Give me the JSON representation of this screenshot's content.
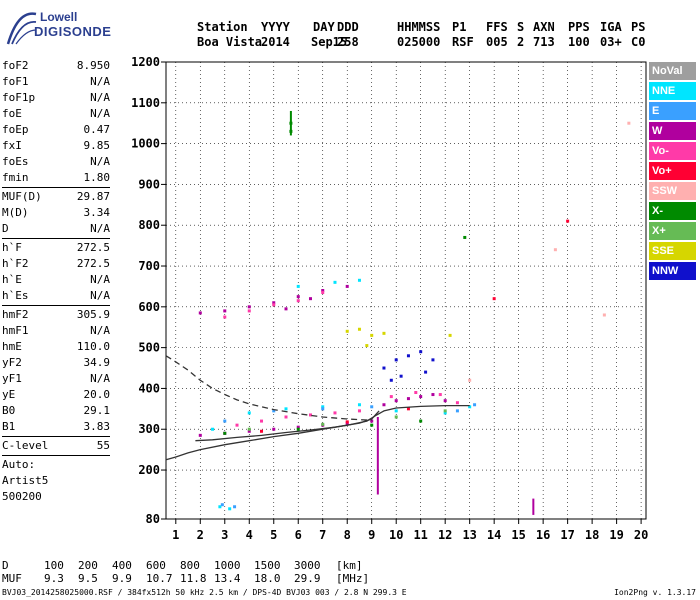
{
  "logo": {
    "line1": "Lowell",
    "line2": "DIGISONDE"
  },
  "header": {
    "labels": [
      "Station",
      "YYYY",
      "DAY",
      "DDD",
      "HHMMSS",
      "P1",
      "FFS",
      "S",
      "AXN",
      "PPS",
      "IGA",
      "PS"
    ],
    "values": [
      "Boa Vista",
      "2014",
      "Sep15",
      "258",
      "025000",
      "RSF",
      "005",
      "2",
      "713",
      "100",
      "03+",
      "C0"
    ]
  },
  "params": {
    "group1": [
      {
        "name": "foF2",
        "value": "8.950"
      },
      {
        "name": "foF1",
        "value": "N/A"
      },
      {
        "name": "foF1p",
        "value": "N/A"
      },
      {
        "name": "foE",
        "value": "N/A"
      },
      {
        "name": "foEp",
        "value": "0.47"
      },
      {
        "name": "fxI",
        "value": "9.85"
      },
      {
        "name": "foEs",
        "value": "N/A"
      },
      {
        "name": "fmin",
        "value": "1.80"
      }
    ],
    "group2": [
      {
        "name": "MUF(D)",
        "value": "29.87"
      },
      {
        "name": "M(D)",
        "value": "3.34"
      },
      {
        "name": "D",
        "value": "N/A"
      }
    ],
    "group3": [
      {
        "name": "h`F",
        "value": "272.5"
      },
      {
        "name": "h`F2",
        "value": "272.5"
      },
      {
        "name": "h`E",
        "value": "N/A"
      },
      {
        "name": "h`Es",
        "value": "N/A"
      }
    ],
    "group4": [
      {
        "name": "hmF2",
        "value": "305.9"
      },
      {
        "name": "hmF1",
        "value": "N/A"
      },
      {
        "name": "hmE",
        "value": "110.0"
      },
      {
        "name": "yF2",
        "value": "34.9"
      },
      {
        "name": "yF1",
        "value": "N/A"
      },
      {
        "name": "yE",
        "value": "20.0"
      },
      {
        "name": "B0",
        "value": "29.1"
      },
      {
        "name": "B1",
        "value": "3.83"
      }
    ],
    "group5": [
      {
        "name": "C-level",
        "value": "55"
      }
    ],
    "auto": [
      "Auto:",
      "Artist5",
      "500200"
    ]
  },
  "legend": [
    {
      "label": "NoVal",
      "color": "#9e9e9e"
    },
    {
      "label": "NNE",
      "color": "#00e5ff"
    },
    {
      "label": "E",
      "color": "#3aa0ff"
    },
    {
      "label": "W",
      "color": "#b0009e"
    },
    {
      "label": "Vo-",
      "color": "#ff3aa8"
    },
    {
      "label": "Vo+",
      "color": "#ff0033"
    },
    {
      "label": "SSW",
      "color": "#ffb0b0"
    },
    {
      "label": "X-",
      "color": "#008a00"
    },
    {
      "label": "X+",
      "color": "#66bb55"
    },
    {
      "label": "SSE",
      "color": "#d6d600"
    },
    {
      "label": "NNW",
      "color": "#1010cc"
    }
  ],
  "muf_table": {
    "d_label": "D",
    "d_values": [
      "100",
      "200",
      "400",
      "600",
      "800",
      "1000",
      "1500",
      "3000"
    ],
    "d_unit": "[km]",
    "muf_label": "MUF",
    "muf_values": [
      "9.3",
      "9.5",
      "9.9",
      "10.7",
      "11.8",
      "13.4",
      "18.0",
      "29.9"
    ],
    "muf_unit": "[MHz]"
  },
  "footer": {
    "left": "BVJ03_2014258025000.RSF / 384fx512h 50 kHz 2.5 km / DPS-4D BVJ03 003 / 2.8 N 299.3 E",
    "right": "Ion2Png v. 1.3.17"
  },
  "chart_data": {
    "type": "scatter",
    "x_ticks": [
      1,
      2,
      3,
      4,
      5,
      6,
      7,
      8,
      9,
      10,
      11,
      12,
      13,
      14,
      15,
      16,
      17,
      18,
      19,
      20
    ],
    "y_ticks": [
      80,
      200,
      300,
      400,
      500,
      600,
      700,
      800,
      900,
      1000,
      1100,
      1200
    ],
    "xlim": [
      0.6,
      20.2
    ],
    "ylim": [
      80,
      1200
    ],
    "grid": true,
    "legend_position": "right",
    "series": [
      {
        "color": "#b0009e",
        "points": [
          [
            2.0,
            285
          ],
          [
            3.0,
            290
          ],
          [
            4.0,
            295
          ],
          [
            5.0,
            300
          ],
          [
            6.0,
            305
          ],
          [
            7.0,
            310
          ],
          [
            8.0,
            315
          ],
          [
            9.0,
            320
          ],
          [
            9.5,
            360
          ],
          [
            10.0,
            370
          ],
          [
            10.5,
            375
          ],
          [
            11.0,
            380
          ],
          [
            11.5,
            385
          ],
          [
            12.0,
            370
          ],
          [
            2.0,
            585
          ],
          [
            3.0,
            590
          ],
          [
            4.0,
            600
          ],
          [
            5.0,
            610
          ],
          [
            6.0,
            625
          ],
          [
            7.0,
            640
          ],
          [
            8.0,
            650
          ],
          [
            5.5,
            595
          ],
          [
            6.5,
            620
          ]
        ]
      },
      {
        "color": "#ff3aa8",
        "points": [
          [
            3.5,
            310
          ],
          [
            4.5,
            320
          ],
          [
            5.5,
            330
          ],
          [
            6.5,
            335
          ],
          [
            7.5,
            340
          ],
          [
            8.5,
            345
          ],
          [
            9.8,
            380
          ],
          [
            10.8,
            390
          ],
          [
            11.8,
            385
          ],
          [
            12.5,
            365
          ],
          [
            3.0,
            575
          ],
          [
            4.0,
            590
          ],
          [
            5.0,
            605
          ],
          [
            6.0,
            615
          ],
          [
            7.0,
            635
          ]
        ]
      },
      {
        "color": "#1010cc",
        "points": [
          [
            9.5,
            450
          ],
          [
            10.0,
            470
          ],
          [
            10.5,
            480
          ],
          [
            11.0,
            490
          ],
          [
            11.5,
            470
          ],
          [
            10.2,
            430
          ],
          [
            11.2,
            440
          ],
          [
            9.8,
            420
          ]
        ]
      },
      {
        "color": "#00e5ff",
        "points": [
          [
            2.5,
            300
          ],
          [
            4.0,
            340
          ],
          [
            5.5,
            350
          ],
          [
            7.0,
            355
          ],
          [
            8.5,
            360
          ],
          [
            10.0,
            345
          ],
          [
            12.0,
            340
          ],
          [
            13.0,
            355
          ],
          [
            6.0,
            650
          ],
          [
            7.5,
            660
          ],
          [
            8.5,
            665
          ],
          [
            2.8,
            110
          ],
          [
            3.2,
            105
          ]
        ]
      },
      {
        "color": "#3aa0ff",
        "points": [
          [
            3.0,
            320
          ],
          [
            5.0,
            345
          ],
          [
            7.0,
            350
          ],
          [
            9.0,
            355
          ],
          [
            12.5,
            345
          ],
          [
            13.2,
            360
          ],
          [
            2.9,
            115
          ],
          [
            3.4,
            110
          ]
        ]
      },
      {
        "color": "#d6d600",
        "points": [
          [
            8.0,
            540
          ],
          [
            8.5,
            545
          ],
          [
            9.0,
            530
          ],
          [
            9.5,
            535
          ],
          [
            8.8,
            505
          ],
          [
            12.2,
            530
          ]
        ]
      },
      {
        "color": "#008a00",
        "points": [
          [
            5.7,
            1050
          ],
          [
            5.7,
            1030
          ],
          [
            3.0,
            290
          ],
          [
            6.0,
            300
          ],
          [
            9.0,
            310
          ],
          [
            11.0,
            320
          ],
          [
            12.8,
            770
          ]
        ]
      },
      {
        "color": "#66bb55",
        "points": [
          [
            4.0,
            300
          ],
          [
            7.0,
            312
          ],
          [
            10.0,
            330
          ],
          [
            12.0,
            345
          ]
        ]
      },
      {
        "color": "#ff0033",
        "points": [
          [
            4.5,
            295
          ],
          [
            8.0,
            318
          ],
          [
            10.5,
            350
          ],
          [
            14.0,
            620
          ],
          [
            17.0,
            810
          ]
        ]
      },
      {
        "color": "#ffb0b0",
        "points": [
          [
            13.0,
            420
          ],
          [
            16.5,
            740
          ],
          [
            18.5,
            580
          ],
          [
            19.5,
            1050
          ]
        ]
      }
    ],
    "curves": [
      {
        "style": "solid",
        "points": [
          [
            0.6,
            225
          ],
          [
            1,
            232
          ],
          [
            1.5,
            242
          ],
          [
            2,
            250
          ],
          [
            3,
            262
          ],
          [
            4,
            272
          ],
          [
            5,
            282
          ],
          [
            6,
            290
          ],
          [
            7,
            300
          ],
          [
            8,
            310
          ],
          [
            8.8,
            320
          ],
          [
            9.2,
            335
          ],
          [
            9.5,
            345
          ],
          [
            10,
            352
          ],
          [
            11,
            356
          ],
          [
            12,
            358
          ],
          [
            13,
            358
          ]
        ]
      },
      {
        "style": "solid",
        "points": [
          [
            1.8,
            272
          ],
          [
            2.5,
            274
          ],
          [
            3.5,
            280
          ],
          [
            4.5,
            285
          ],
          [
            5.5,
            292
          ],
          [
            6.5,
            298
          ],
          [
            7.5,
            305
          ],
          [
            8.5,
            315
          ],
          [
            9.0,
            325
          ],
          [
            9.3,
            345
          ]
        ]
      },
      {
        "style": "dashed",
        "points": [
          [
            0.6,
            480
          ],
          [
            1.0,
            465
          ],
          [
            1.5,
            445
          ],
          [
            2.0,
            420
          ],
          [
            2.5,
            400
          ],
          [
            3.0,
            385
          ],
          [
            3.5,
            372
          ],
          [
            4.0,
            362
          ],
          [
            5.0,
            348
          ],
          [
            6.0,
            338
          ],
          [
            7.0,
            330
          ],
          [
            8.0,
            325
          ],
          [
            9.0,
            322
          ]
        ]
      }
    ],
    "streaks": [
      {
        "color": "#b0009e",
        "x": 9.25,
        "y_from": 140,
        "y_to": 330
      },
      {
        "color": "#b0009e",
        "x": 15.6,
        "y_from": 90,
        "y_to": 130
      },
      {
        "color": "#008a00",
        "x": 5.7,
        "y_from": 1020,
        "y_to": 1080
      }
    ]
  }
}
